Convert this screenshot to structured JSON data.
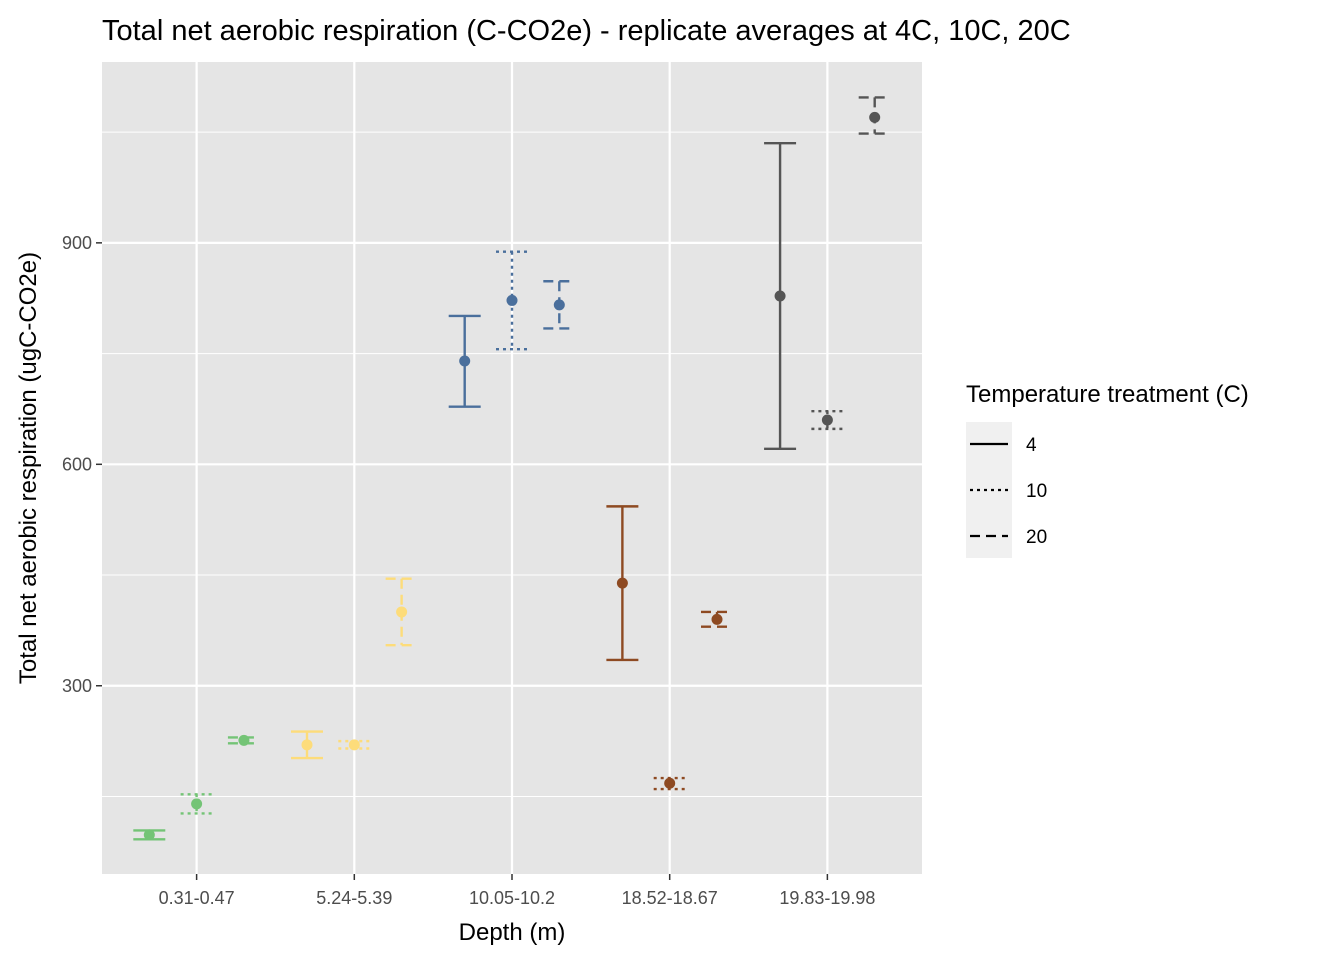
{
  "chart_data": {
    "type": "scatter",
    "subtype": "point-with-errorbars",
    "title": "Total net aerobic respiration (C-CO2e) - replicate averages at 4C, 10C, 20C",
    "xlabel": "Depth (m)",
    "ylabel": "Total net aerobic respiration (ugC-CO2e)",
    "categories": [
      "0.31-0.47",
      "5.24-5.39",
      "10.05-10.2",
      "18.52-18.67",
      "19.83-19.98"
    ],
    "ylim": [
      45,
      1145
    ],
    "yticks": [
      300,
      600,
      900
    ],
    "grid": true,
    "legend": {
      "title": "Temperature treatment (C)",
      "placement": "right",
      "entries": [
        {
          "label": "4",
          "linetype": "solid"
        },
        {
          "label": "10",
          "linetype": "dotted"
        },
        {
          "label": "20",
          "linetype": "dashed"
        }
      ]
    },
    "category_colors": {
      "0.31-0.47": "#74c476",
      "5.24-5.39": "#fddc7a",
      "10.05-10.2": "#4a6f9c",
      "18.52-18.67": "#8e4a22",
      "19.83-19.98": "#555555"
    },
    "series": [
      {
        "name": "4",
        "linetype": "solid",
        "values": [
          98,
          220,
          740,
          439,
          828
        ],
        "lower": [
          92,
          202,
          678,
          335,
          621
        ],
        "upper": [
          104,
          238,
          801,
          543,
          1035
        ]
      },
      {
        "name": "10",
        "linetype": "dotted",
        "values": [
          140,
          220,
          822,
          168,
          660
        ],
        "lower": [
          127,
          215,
          756,
          160,
          648
        ],
        "upper": [
          153,
          225,
          888,
          175,
          672
        ]
      },
      {
        "name": "20",
        "linetype": "dashed",
        "values": [
          226,
          400,
          816,
          390,
          1070
        ],
        "lower": [
          222,
          355,
          784,
          380,
          1048
        ],
        "upper": [
          230,
          445,
          848,
          400,
          1097
        ]
      }
    ]
  }
}
